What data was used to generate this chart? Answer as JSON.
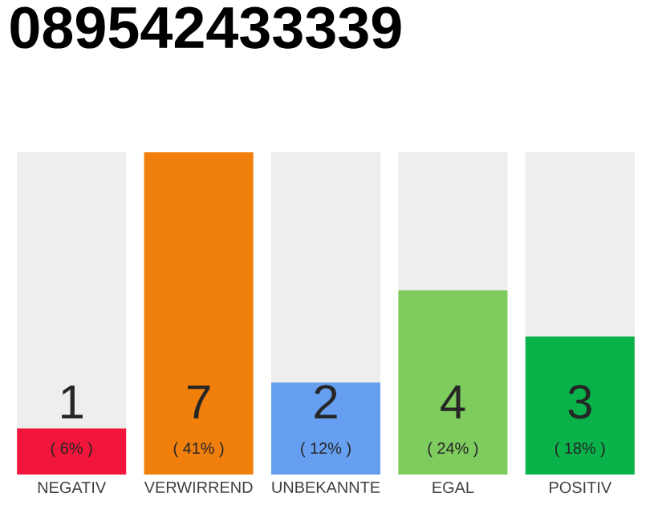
{
  "chart_data": {
    "type": "bar",
    "title": "089542433339",
    "categories": [
      "NEGATIV",
      "VERWIRREND",
      "UNBEKANNTE",
      "EGAL",
      "POSITIV"
    ],
    "values": [
      1,
      7,
      2,
      4,
      3
    ],
    "colors": [
      "#f2163c",
      "#f07f0c",
      "#679ff0",
      "#7ecb5e",
      "#0ab24a"
    ],
    "ylim": [
      0,
      7
    ],
    "data_labels": true,
    "annotations": [
      "( 6% )",
      "( 41% )",
      "( 12% )",
      "( 24% )",
      "( 18% )"
    ]
  }
}
